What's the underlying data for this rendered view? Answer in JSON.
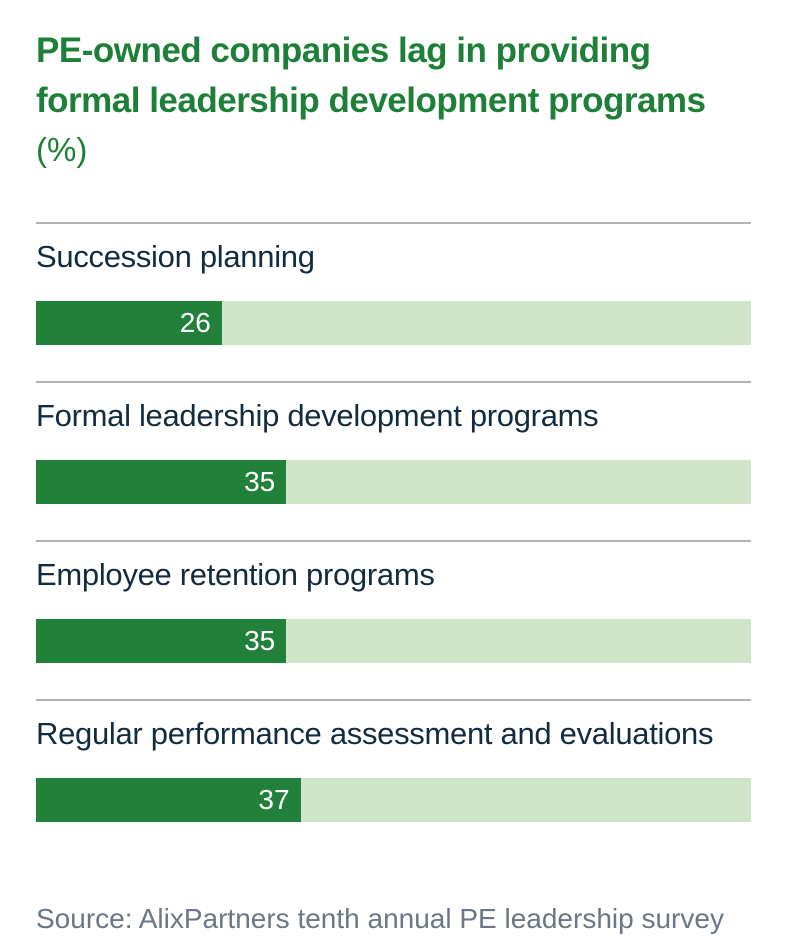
{
  "title": {
    "line1": "PE-owned companies lag in providing",
    "line2": "formal leadership development programs",
    "unit_label": "(%)"
  },
  "source_note": "Source: AlixPartners tenth annual PE leadership survey",
  "colors": {
    "title_green": "#1E8038",
    "bar_fill_green": "#21813A",
    "bar_track_light_green": "#CFE5C7",
    "label_navy": "#132B3F",
    "source_gray": "#6B7686",
    "divider_gray": "#B3B3B3",
    "bar_value_text": "#FFFFFF",
    "background": "#FFFFFF"
  },
  "chart_data": {
    "type": "bar",
    "orientation": "horizontal",
    "title": "PE-owned companies lag in providing formal leadership development programs",
    "unit": "%",
    "categories": [
      "Succession planning",
      "Formal leadership development programs",
      "Employee retention programs",
      "Regular performance assessment and evaluations"
    ],
    "values": [
      26,
      35,
      35,
      37
    ],
    "xlim": [
      0,
      100
    ],
    "grid": false,
    "legend": "none",
    "value_labels": "inside-end-of-filled-segment",
    "source": "Source: AlixPartners tenth annual PE leadership survey"
  }
}
